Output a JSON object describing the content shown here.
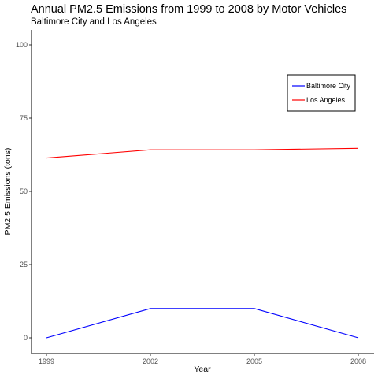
{
  "chart_data": {
    "type": "line",
    "title": "Annual PM2.5 Emissions from 1999 to 2008 by Motor Vehicles",
    "subtitle": "Baltimore City and Los Angeles",
    "xlabel": "Year",
    "ylabel": "PM2.5 Emissions (tons)",
    "x": [
      1999,
      2002,
      2005,
      2008
    ],
    "x_tick_labels": [
      "1999",
      "2002",
      "2005",
      "2008"
    ],
    "y_ticks": [
      0,
      25,
      50,
      75,
      100
    ],
    "y_tick_labels": [
      "0",
      "25",
      "50",
      "75",
      "100"
    ],
    "xlim": [
      1999,
      2008
    ],
    "ylim": [
      0,
      100
    ],
    "grid": false,
    "legend_position": "top-right",
    "series": [
      {
        "name": "Baltimore City",
        "color": "#0000ff",
        "values": [
          0,
          10,
          10,
          0
        ]
      },
      {
        "name": "Los Angeles",
        "color": "#ff0000",
        "values": [
          61.4,
          64.2,
          64.2,
          64.7
        ]
      }
    ]
  }
}
